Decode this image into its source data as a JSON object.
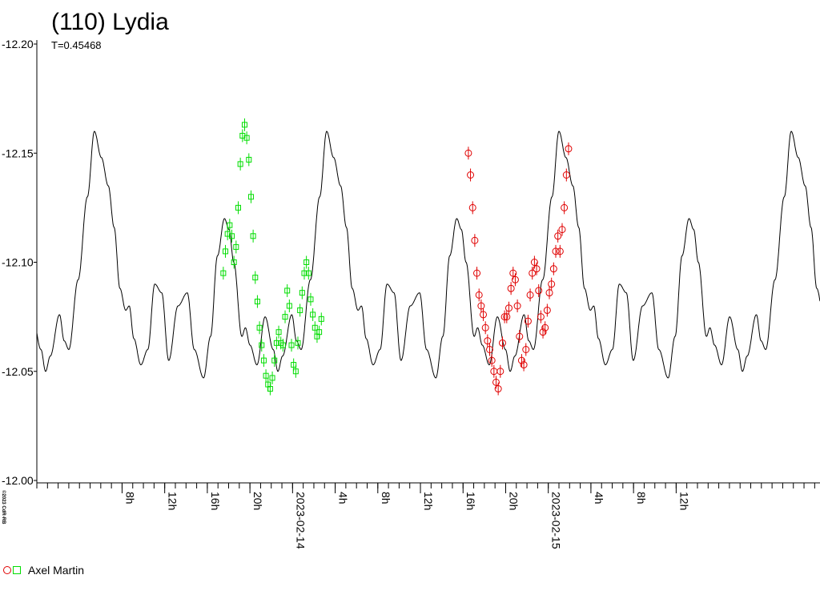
{
  "chart_data": {
    "type": "scatter",
    "title": "(110) Lydia",
    "subtitle": "T=0.45468",
    "credit": "©2023 CdR-RB",
    "yticks": [
      "-12.20",
      "-12.15",
      "-12.10",
      "-12.05",
      "-12.00"
    ],
    "ylim": [
      -12.2,
      -12.0
    ],
    "y_inverted": true,
    "xlim_hours": [
      0,
      73.5
    ],
    "xtick_labels": [
      {
        "h": 8,
        "label": "8h"
      },
      {
        "h": 12,
        "label": "12h"
      },
      {
        "h": 16,
        "label": "16h"
      },
      {
        "h": 20,
        "label": "20h"
      },
      {
        "h": 24,
        "label": "2023-02-14"
      },
      {
        "h": 28,
        "label": "4h"
      },
      {
        "h": 32,
        "label": "8h"
      },
      {
        "h": 36,
        "label": "12h"
      },
      {
        "h": 40,
        "label": "16h"
      },
      {
        "h": 44,
        "label": "20h"
      },
      {
        "h": 48,
        "label": "2023-02-15"
      },
      {
        "h": 52,
        "label": "4h"
      },
      {
        "h": 56,
        "label": "8h"
      },
      {
        "h": 60,
        "label": "12h"
      }
    ],
    "model_curve": {
      "period_hours": 21.8,
      "phase_points": [
        [
          0,
          -12.16
        ],
        [
          0.03,
          -12.148
        ],
        [
          0.06,
          -12.135
        ],
        [
          0.085,
          -12.116
        ],
        [
          0.11,
          -12.088
        ],
        [
          0.135,
          -12.078
        ],
        [
          0.15,
          -12.08
        ],
        [
          0.17,
          -12.065
        ],
        [
          0.2,
          -12.053
        ],
        [
          0.23,
          -12.06
        ],
        [
          0.26,
          -12.09
        ],
        [
          0.29,
          -12.086
        ],
        [
          0.32,
          -12.055
        ],
        [
          0.36,
          -12.08
        ],
        [
          0.4,
          -12.086
        ],
        [
          0.43,
          -12.06
        ],
        [
          0.47,
          -12.047
        ],
        [
          0.5,
          -12.066
        ],
        [
          0.53,
          -12.103
        ],
        [
          0.56,
          -12.12
        ],
        [
          0.58,
          -12.115
        ],
        [
          0.6,
          -12.1
        ],
        [
          0.635,
          -12.066
        ],
        [
          0.65,
          -12.07
        ],
        [
          0.67,
          -12.062
        ],
        [
          0.7,
          -12.053
        ],
        [
          0.735,
          -12.075
        ],
        [
          0.77,
          -12.06
        ],
        [
          0.79,
          -12.05
        ],
        [
          0.81,
          -12.057
        ],
        [
          0.85,
          -12.076
        ],
        [
          0.87,
          -12.064
        ],
        [
          0.89,
          -12.06
        ],
        [
          0.93,
          -12.092
        ],
        [
          0.97,
          -12.13
        ],
        [
          1.0,
          -12.16
        ]
      ]
    },
    "series": [
      {
        "name": "Axel Martin",
        "color": "#00dd00",
        "marker": "square",
        "points": [
          [
            17.5,
            -12.095
          ],
          [
            17.7,
            -12.105
          ],
          [
            17.9,
            -12.113
          ],
          [
            18.1,
            -12.117
          ],
          [
            18.3,
            -12.112
          ],
          [
            18.5,
            -12.1
          ],
          [
            18.7,
            -12.107
          ],
          [
            18.9,
            -12.125
          ],
          [
            19.1,
            -12.145
          ],
          [
            19.3,
            -12.158
          ],
          [
            19.5,
            -12.163
          ],
          [
            19.7,
            -12.157
          ],
          [
            19.9,
            -12.147
          ],
          [
            20.1,
            -12.13
          ],
          [
            20.3,
            -12.112
          ],
          [
            20.5,
            -12.093
          ],
          [
            20.7,
            -12.082
          ],
          [
            20.9,
            -12.07
          ],
          [
            21.1,
            -12.062
          ],
          [
            21.3,
            -12.055
          ],
          [
            21.5,
            -12.048
          ],
          [
            21.7,
            -12.044
          ],
          [
            21.9,
            -12.042
          ],
          [
            22.1,
            -12.047
          ],
          [
            22.3,
            -12.055
          ],
          [
            22.5,
            -12.063
          ],
          [
            22.7,
            -12.068
          ],
          [
            22.9,
            -12.063
          ],
          [
            23.1,
            -12.062
          ],
          [
            23.3,
            -12.075
          ],
          [
            23.5,
            -12.087
          ],
          [
            23.7,
            -12.08
          ],
          [
            23.9,
            -12.062
          ],
          [
            24.1,
            -12.053
          ],
          [
            24.3,
            -12.05
          ],
          [
            24.5,
            -12.063
          ],
          [
            24.7,
            -12.078
          ],
          [
            24.9,
            -12.086
          ],
          [
            25.1,
            -12.095
          ],
          [
            25.3,
            -12.1
          ],
          [
            25.5,
            -12.095
          ],
          [
            25.7,
            -12.083
          ],
          [
            25.9,
            -12.076
          ],
          [
            26.1,
            -12.07
          ],
          [
            26.3,
            -12.066
          ],
          [
            26.5,
            -12.068
          ],
          [
            26.7,
            -12.074
          ]
        ]
      },
      {
        "name": "Axel Martin",
        "color": "#e00000",
        "marker": "circle",
        "points": [
          [
            40.5,
            -12.15
          ],
          [
            40.7,
            -12.14
          ],
          [
            40.9,
            -12.125
          ],
          [
            41.1,
            -12.11
          ],
          [
            41.3,
            -12.095
          ],
          [
            41.5,
            -12.085
          ],
          [
            41.7,
            -12.08
          ],
          [
            41.9,
            -12.076
          ],
          [
            42.1,
            -12.07
          ],
          [
            42.3,
            -12.064
          ],
          [
            42.5,
            -12.06
          ],
          [
            42.7,
            -12.055
          ],
          [
            42.9,
            -12.05
          ],
          [
            43.1,
            -12.045
          ],
          [
            43.3,
            -12.042
          ],
          [
            43.5,
            -12.05
          ],
          [
            43.7,
            -12.063
          ],
          [
            43.9,
            -12.075
          ],
          [
            44.1,
            -12.075
          ],
          [
            44.3,
            -12.079
          ],
          [
            44.5,
            -12.088
          ],
          [
            44.7,
            -12.095
          ],
          [
            44.9,
            -12.092
          ],
          [
            45.1,
            -12.08
          ],
          [
            45.3,
            -12.066
          ],
          [
            45.5,
            -12.055
          ],
          [
            45.7,
            -12.053
          ],
          [
            45.9,
            -12.06
          ],
          [
            46.1,
            -12.073
          ],
          [
            46.3,
            -12.085
          ],
          [
            46.5,
            -12.095
          ],
          [
            46.7,
            -12.1
          ],
          [
            46.9,
            -12.097
          ],
          [
            47.1,
            -12.087
          ],
          [
            47.3,
            -12.075
          ],
          [
            47.5,
            -12.068
          ],
          [
            47.7,
            -12.07
          ],
          [
            47.9,
            -12.078
          ],
          [
            48.1,
            -12.086
          ],
          [
            48.3,
            -12.09
          ],
          [
            48.5,
            -12.097
          ],
          [
            48.7,
            -12.105
          ],
          [
            48.9,
            -12.112
          ],
          [
            49.1,
            -12.105
          ],
          [
            49.3,
            -12.115
          ],
          [
            49.5,
            -12.125
          ],
          [
            49.7,
            -12.14
          ],
          [
            49.9,
            -12.152
          ]
        ]
      }
    ],
    "legend": {
      "label": "Axel Martin",
      "placement": "bottom-left"
    }
  }
}
